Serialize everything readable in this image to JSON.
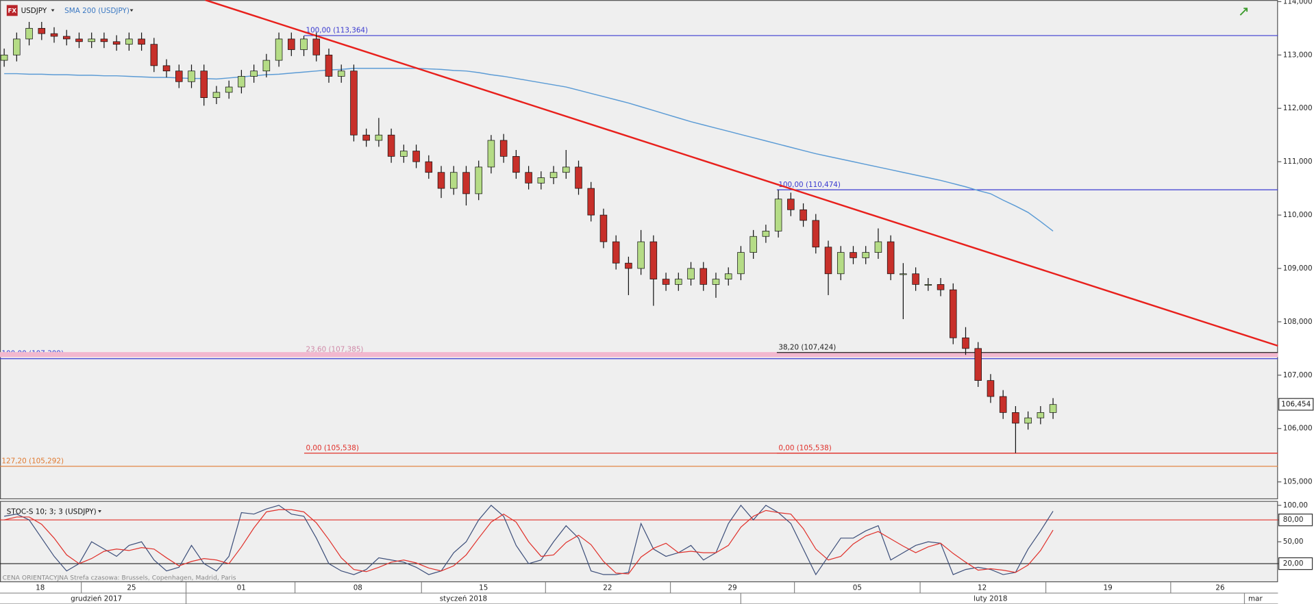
{
  "chart_data": {
    "type": "candlestick",
    "icon": "FX",
    "symbol": "USDJPY",
    "up_color": "#b5dc86",
    "down_color": "#c7302a",
    "ylim": [
      104.69,
      114.03
    ],
    "yticks": [
      {
        "value": 114,
        "label": "114,000"
      },
      {
        "value": 113,
        "label": "113,000"
      },
      {
        "value": 112,
        "label": "112,000"
      },
      {
        "value": 111,
        "label": "111,000"
      },
      {
        "value": 110,
        "label": "110,000"
      },
      {
        "value": 109,
        "label": "109,000"
      },
      {
        "value": 108,
        "label": "108,000"
      },
      {
        "value": 107,
        "label": "107,000"
      },
      {
        "value": 106,
        "label": "106,000"
      },
      {
        "value": 105,
        "label": "105,000"
      }
    ],
    "last_price": {
      "value": 106.454,
      "label": "106,454"
    },
    "open": [
      112.9,
      113.0,
      113.3,
      113.5,
      113.4,
      113.35,
      113.3,
      113.25,
      113.3,
      113.25,
      113.2,
      113.3,
      113.2,
      112.8,
      112.7,
      112.5,
      112.7,
      112.2,
      112.3,
      112.4,
      112.6,
      112.7,
      112.9,
      113.3,
      113.1,
      113.3,
      113.0,
      112.6,
      112.7,
      111.5,
      111.4,
      111.5,
      111.1,
      111.2,
      111.0,
      110.8,
      110.5,
      110.8,
      110.4,
      110.9,
      111.4,
      111.1,
      110.8,
      110.6,
      110.7,
      110.8,
      110.9,
      110.5,
      110.0,
      109.5,
      109.1,
      109.0,
      109.5,
      108.8,
      108.7,
      108.8,
      109.0,
      108.7,
      108.8,
      108.9,
      109.3,
      109.6,
      109.7,
      110.3,
      110.1,
      109.9,
      109.4,
      108.9,
      109.3,
      109.2,
      109.3,
      109.5,
      108.9,
      108.9,
      108.7,
      108.7,
      108.6,
      107.7,
      107.5,
      106.9,
      106.6,
      106.3,
      106.1,
      106.2,
      106.3
    ],
    "high": [
      113.12,
      113.42,
      113.62,
      113.62,
      113.52,
      113.47,
      113.42,
      113.42,
      113.42,
      113.37,
      113.42,
      113.42,
      113.32,
      112.92,
      112.82,
      112.82,
      112.82,
      112.42,
      112.52,
      112.72,
      112.82,
      113.02,
      113.42,
      113.42,
      113.36,
      113.42,
      113.12,
      112.82,
      112.82,
      111.62,
      111.82,
      111.62,
      111.32,
      111.32,
      111.12,
      110.92,
      110.92,
      110.92,
      111.02,
      111.5,
      111.52,
      111.22,
      110.92,
      110.82,
      110.92,
      111.22,
      111.02,
      110.62,
      110.12,
      109.62,
      109.22,
      109.72,
      109.62,
      108.92,
      108.92,
      109.12,
      109.12,
      108.92,
      109.02,
      109.42,
      109.72,
      109.82,
      110.47,
      110.42,
      110.22,
      110.02,
      109.52,
      109.42,
      109.42,
      109.42,
      109.75,
      109.62,
      109.1,
      109.02,
      108.82,
      108.82,
      108.72,
      107.9,
      107.62,
      107.02,
      106.72,
      106.42,
      106.32,
      106.42,
      106.57
    ],
    "low": [
      112.78,
      112.88,
      113.18,
      113.28,
      113.23,
      113.18,
      113.13,
      113.13,
      113.13,
      113.08,
      113.08,
      113.08,
      112.68,
      112.58,
      112.38,
      112.38,
      112.05,
      112.08,
      112.18,
      112.28,
      112.48,
      112.58,
      112.78,
      112.98,
      112.98,
      112.88,
      112.48,
      112.48,
      111.38,
      111.28,
      111.28,
      110.98,
      110.98,
      110.88,
      110.68,
      110.32,
      110.38,
      110.18,
      110.28,
      110.78,
      110.98,
      110.68,
      110.48,
      110.48,
      110.58,
      110.68,
      110.38,
      109.88,
      109.38,
      108.98,
      108.5,
      108.88,
      108.3,
      108.58,
      108.58,
      108.68,
      108.58,
      108.45,
      108.68,
      108.78,
      109.18,
      109.48,
      109.58,
      109.98,
      109.78,
      109.28,
      108.5,
      108.78,
      109.08,
      109.08,
      109.18,
      108.78,
      108.05,
      108.58,
      108.58,
      108.48,
      107.58,
      107.38,
      106.78,
      106.48,
      106.18,
      105.54,
      105.98,
      106.08,
      106.18
    ],
    "close": [
      113.0,
      113.3,
      113.5,
      113.4,
      113.35,
      113.3,
      113.25,
      113.3,
      113.25,
      113.2,
      113.3,
      113.2,
      112.8,
      112.7,
      112.5,
      112.7,
      112.2,
      112.3,
      112.4,
      112.6,
      112.7,
      112.9,
      113.3,
      113.1,
      113.3,
      113.0,
      112.6,
      112.7,
      111.5,
      111.4,
      111.5,
      111.1,
      111.2,
      111.0,
      110.8,
      110.5,
      110.8,
      110.4,
      110.9,
      111.4,
      111.1,
      110.8,
      110.6,
      110.7,
      110.8,
      110.9,
      110.5,
      110.0,
      109.5,
      109.1,
      109.0,
      109.5,
      108.8,
      108.7,
      108.8,
      109.0,
      108.7,
      108.8,
      108.9,
      109.3,
      109.6,
      109.7,
      110.3,
      110.1,
      109.9,
      109.4,
      108.9,
      109.3,
      109.2,
      109.3,
      109.5,
      108.9,
      108.9,
      108.7,
      108.7,
      108.6,
      107.7,
      107.5,
      106.9,
      106.6,
      106.3,
      106.1,
      106.2,
      106.3,
      106.45
    ],
    "overlays": [
      {
        "name": "SMA 200 (USDJPY)",
        "color": "#5b9bd5",
        "values": [
          112.65,
          112.65,
          112.64,
          112.64,
          112.63,
          112.63,
          112.62,
          112.62,
          112.61,
          112.61,
          112.6,
          112.59,
          112.58,
          112.58,
          112.57,
          112.56,
          112.56,
          112.55,
          112.57,
          112.59,
          112.61,
          112.63,
          112.64,
          112.66,
          112.68,
          112.7,
          112.72,
          112.73,
          112.75,
          112.75,
          112.75,
          112.75,
          112.75,
          112.75,
          112.74,
          112.73,
          112.71,
          112.7,
          112.67,
          112.63,
          112.6,
          112.56,
          112.52,
          112.48,
          112.44,
          112.4,
          112.34,
          112.28,
          112.22,
          112.16,
          112.1,
          112.03,
          111.96,
          111.89,
          111.82,
          111.75,
          111.69,
          111.63,
          111.57,
          111.51,
          111.45,
          111.39,
          111.33,
          111.27,
          111.21,
          111.15,
          111.1,
          111.05,
          111.0,
          110.95,
          110.9,
          110.85,
          110.8,
          110.75,
          110.7,
          110.65,
          110.59,
          110.53,
          110.46,
          110.4,
          110.28,
          110.17,
          110.05,
          109.88,
          109.7
        ]
      }
    ],
    "trendline": {
      "color": "#e8201c",
      "values": [
        114.03,
        107.55
      ]
    },
    "levels": [
      {
        "value": 113.364,
        "label": "100,00 (113,364)",
        "color": "#3a3ad0"
      },
      {
        "value": 110.474,
        "label": "100,00 (110,474)",
        "color": "#3a3ad0"
      },
      {
        "value": 107.309,
        "label": "100,00 (107,309)",
        "color": "#3a3ad0"
      },
      {
        "value": 107.385,
        "label": "23,60 (107,385)",
        "color": "#f2b8cf"
      },
      {
        "value": 107.424,
        "label": "38,20 (107,424)",
        "color": "#222222"
      },
      {
        "value": 105.538,
        "label": "0,00 (105,538)",
        "color": "#e0302a"
      },
      {
        "value": 105.538,
        "label": "0,00 (105,538)",
        "color": "#e0302a"
      },
      {
        "value": 105.292,
        "label": "127,20 (105,292)",
        "color": "#e07a30"
      }
    ],
    "indicator": {
      "type": "line",
      "name": "STOC-S 10; 3; 3 (USDJPY)",
      "ylim": [
        -2,
        106
      ],
      "yticks": [
        {
          "value": 100,
          "label": "100,00"
        },
        {
          "value": 80,
          "label": "80,00"
        },
        {
          "value": 50,
          "label": "50,00"
        },
        {
          "value": 20,
          "label": "20,00"
        }
      ],
      "level_colors": [
        "#e0302a",
        "#222222"
      ],
      "series": [
        {
          "color": "#3d4f7a",
          "values": [
            85,
            88,
            80,
            55,
            30,
            10,
            20,
            50,
            40,
            30,
            45,
            50,
            25,
            10,
            15,
            45,
            20,
            10,
            30,
            90,
            88,
            95,
            100,
            88,
            85,
            55,
            20,
            10,
            5,
            12,
            28,
            25,
            22,
            15,
            5,
            10,
            35,
            50,
            80,
            100,
            85,
            45,
            20,
            25,
            50,
            72,
            55,
            10,
            5,
            5,
            8,
            75,
            40,
            30,
            35,
            45,
            25,
            35,
            75,
            100,
            80,
            100,
            90,
            75,
            40,
            5,
            30,
            55,
            55,
            65,
            72,
            25,
            35,
            45,
            50,
            48,
            5,
            12,
            15,
            12,
            5,
            8,
            40,
            65,
            92
          ]
        },
        {
          "color": "#e0302a",
          "values": [
            80,
            84,
            84,
            74,
            55,
            32,
            20,
            27,
            37,
            40,
            38,
            42,
            40,
            28,
            17,
            23,
            27,
            25,
            20,
            43,
            69,
            91,
            94,
            94,
            91,
            76,
            53,
            28,
            12,
            9,
            15,
            22,
            25,
            21,
            14,
            10,
            17,
            32,
            55,
            77,
            88,
            77,
            50,
            30,
            32,
            49,
            59,
            46,
            23,
            7,
            6,
            29,
            41,
            48,
            35,
            37,
            35,
            35,
            45,
            70,
            85,
            93,
            90,
            88,
            68,
            40,
            25,
            30,
            47,
            58,
            64,
            54,
            44,
            35,
            43,
            48,
            34,
            22,
            11,
            13,
            11,
            8,
            18,
            38,
            66
          ]
        }
      ]
    },
    "x_labels": [
      "18",
      "25",
      "01",
      "08",
      "15",
      "22",
      "29",
      "05",
      "12",
      "19",
      "26"
    ],
    "month_labels": [
      "grudzień 2017",
      "styczeń 2018",
      "luty 2018",
      "mar"
    ],
    "footer": "CENA ORIENTACYJNA   Strefa czasowa: Brussels, Copenhagen, Madrid, Paris"
  }
}
